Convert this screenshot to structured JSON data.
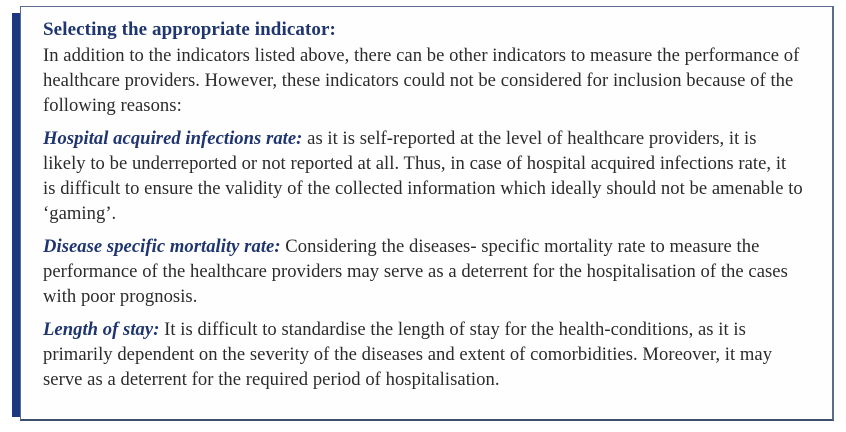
{
  "colors": {
    "accent": "#1c367f",
    "heading": "#1f3570",
    "border": "#5a6d8e",
    "body_text": "#2b2b2b",
    "background": "#fdfefd"
  },
  "box": {
    "heading": "Selecting the appropriate indicator:",
    "intro": "In addition to the indicators listed above, there can be other indicators to measure the performance of healthcare providers. However, these indicators could not be considered for inclusion because of the following reasons:",
    "reasons": [
      {
        "label": "Hospital acquired infections rate:",
        "text": " as it is self-reported at the level of healthcare providers, it is likely to be underreported or not reported at all. Thus, in case of hospital acquired infections rate, it is difficult to ensure the validity of the collected information which ideally should not be amenable to ‘gaming’."
      },
      {
        "label": "Disease specific mortality rate:",
        "text": " Considering the diseases- specific mortality rate to measure the performance of the healthcare providers may serve as a deterrent for the hospitalisation of the cases with poor prognosis."
      },
      {
        "label": "Length of stay:",
        "text": " It is difficult to standardise the length of stay for the health-conditions, as it is primarily dependent on the severity of the diseases and extent of comorbidities. Moreover, it may serve as a deterrent for the required period of hospitalisation."
      }
    ]
  }
}
